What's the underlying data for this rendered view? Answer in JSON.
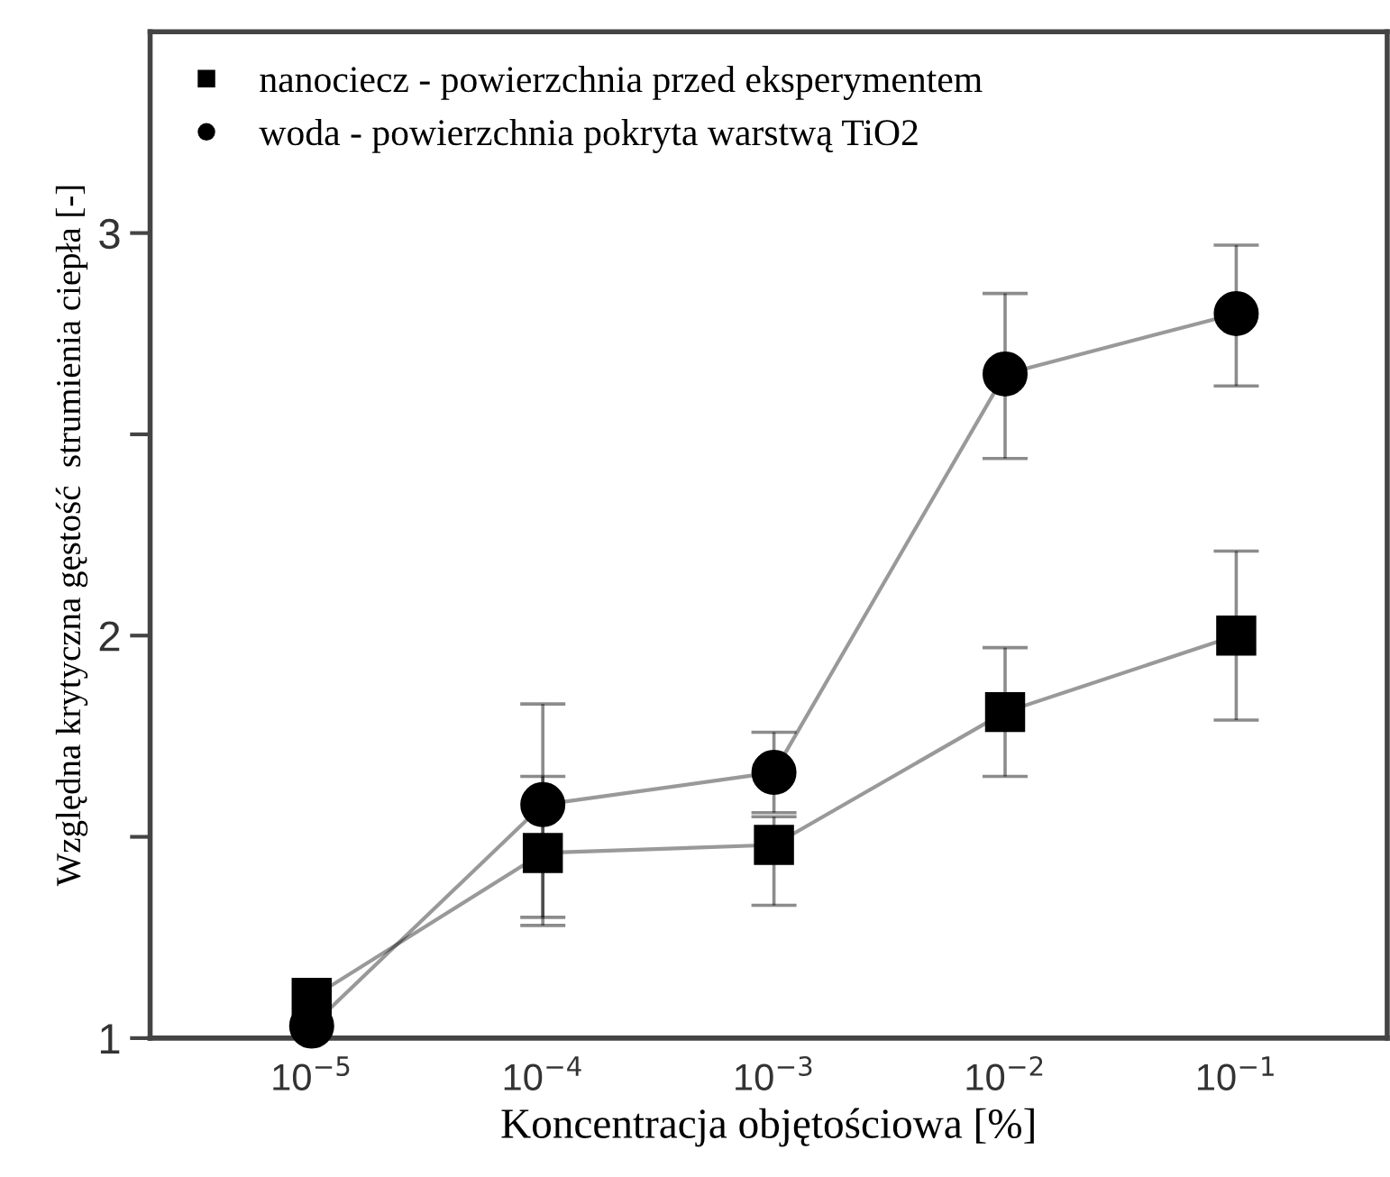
{
  "chart_data": {
    "type": "line",
    "xlabel": "Koncentracja objętościowa [%]",
    "ylabel": "Względna krytyczna gęstość  strumienia ciepła [-]",
    "x": [
      1e-05,
      0.0001,
      0.001,
      0.01,
      0.1
    ],
    "log": "x",
    "xlim": [
      2e-06,
      0.45
    ],
    "xticks": [
      {
        "value": 1e-05,
        "label": "10$^{−5}$"
      },
      {
        "value": 0.0001,
        "label": "10$^{−4}$"
      },
      {
        "value": 0.001,
        "label": "10$^{−3}$"
      },
      {
        "value": 0.01,
        "label": "10$^{−2}$"
      },
      {
        "value": 0.1,
        "label": "10$^{−1}$"
      }
    ],
    "ylim": [
      1,
      3.5
    ],
    "yticks": [
      1,
      {
        "value": 1.5,
        "label": null
      },
      2,
      {
        "value": 2.5,
        "label": null
      },
      3
    ],
    "grid": false,
    "legend": "top left",
    "series": [
      {
        "name": "nanociecz - powierzchnia przed eksperymentem",
        "color": "#000000",
        "marker": "square",
        "values": [
          1.1,
          1.46,
          1.48,
          1.81,
          2.0
        ],
        "errors": [
          null,
          [
            1.3,
            1.65
          ],
          [
            1.33,
            1.55
          ],
          [
            1.65,
            1.97
          ],
          [
            1.79,
            2.21
          ]
        ]
      },
      {
        "name": "woda - powierzchnia pokryta warstwą TiO2",
        "color": "#000000",
        "marker": "circle",
        "values": [
          1.03,
          1.58,
          1.66,
          2.65,
          2.8
        ],
        "errors": [
          null,
          [
            1.28,
            1.83
          ],
          [
            1.56,
            1.76
          ],
          [
            2.44,
            2.85
          ],
          [
            2.62,
            2.97
          ]
        ]
      }
    ]
  }
}
